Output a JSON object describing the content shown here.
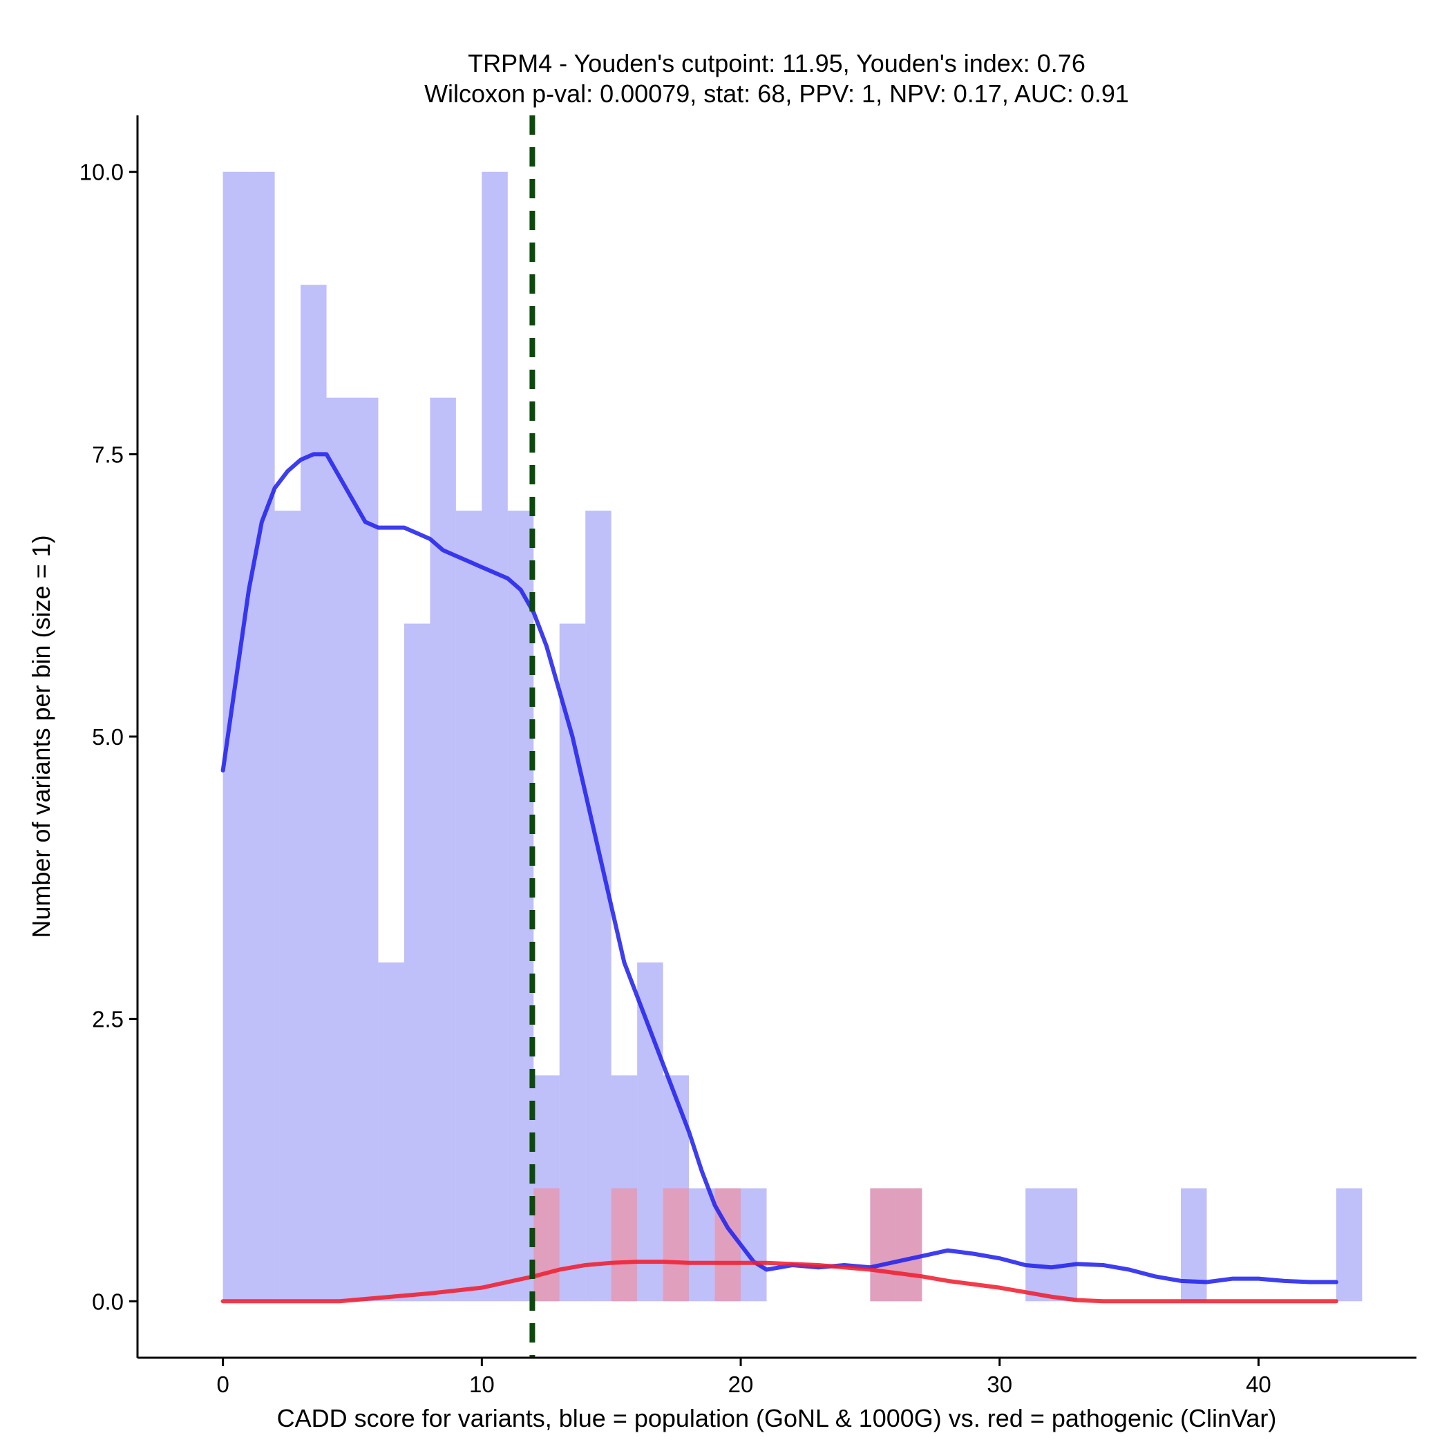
{
  "chart_data": {
    "type": "bar",
    "title": "TRPM4 - Youden's cutpoint: 11.95, Youden's index: 0.76",
    "subtitle": "Wilcoxon p-val: 0.00079, stat: 68, PPV: 1, NPV: 0.17, AUC: 0.91",
    "xlabel": "CADD score for variants, blue = population (GoNL & 1000G) vs. red = pathogenic (ClinVar)",
    "ylabel": "Number of variants per bin (size = 1)",
    "xlim": [
      -3.3,
      46.1
    ],
    "ylim": [
      -0.5,
      10.5
    ],
    "x_ticks": [
      0,
      10,
      20,
      30,
      40
    ],
    "x_tick_labels": [
      "0",
      "10",
      "20",
      "30",
      "40"
    ],
    "y_ticks": [
      0,
      2.5,
      5,
      7.5,
      10
    ],
    "y_tick_labels": [
      "0.0",
      "2.5",
      "5.0",
      "7.5",
      "10.0"
    ],
    "bin_width": 1,
    "cutpoint": 11.95,
    "series": [
      {
        "name": "population (GoNL & 1000G)",
        "color": "#8080f5",
        "bins": [
          {
            "x0": 0,
            "count": 10
          },
          {
            "x0": 1,
            "count": 10
          },
          {
            "x0": 2,
            "count": 7
          },
          {
            "x0": 3,
            "count": 9
          },
          {
            "x0": 4,
            "count": 8
          },
          {
            "x0": 5,
            "count": 8
          },
          {
            "x0": 6,
            "count": 3
          },
          {
            "x0": 7,
            "count": 6
          },
          {
            "x0": 8,
            "count": 8
          },
          {
            "x0": 9,
            "count": 7
          },
          {
            "x0": 10,
            "count": 10
          },
          {
            "x0": 11,
            "count": 7
          },
          {
            "x0": 12,
            "count": 2
          },
          {
            "x0": 13,
            "count": 6
          },
          {
            "x0": 14,
            "count": 7
          },
          {
            "x0": 15,
            "count": 2
          },
          {
            "x0": 16,
            "count": 3
          },
          {
            "x0": 17,
            "count": 2
          },
          {
            "x0": 18,
            "count": 1
          },
          {
            "x0": 19,
            "count": 1
          },
          {
            "x0": 20,
            "count": 1
          },
          {
            "x0": 25,
            "count": 1
          },
          {
            "x0": 26,
            "count": 1
          },
          {
            "x0": 31,
            "count": 1
          },
          {
            "x0": 32,
            "count": 1
          },
          {
            "x0": 37,
            "count": 1
          },
          {
            "x0": 43,
            "count": 1
          }
        ]
      },
      {
        "name": "pathogenic (ClinVar)",
        "color": "#ff8080",
        "bins": [
          {
            "x0": 12,
            "count": 1
          },
          {
            "x0": 15,
            "count": 1
          },
          {
            "x0": 17,
            "count": 1
          },
          {
            "x0": 19,
            "count": 1
          },
          {
            "x0": 25,
            "count": 1
          },
          {
            "x0": 26,
            "count": 1
          }
        ]
      }
    ],
    "density_lines": [
      {
        "name": "population density",
        "color": "#2323ee",
        "x": [
          0,
          0.5,
          1,
          1.5,
          2,
          2.5,
          3,
          3.5,
          4,
          4.5,
          5,
          5.5,
          6,
          6.5,
          7,
          7.5,
          8,
          8.5,
          9,
          9.5,
          10,
          10.5,
          11,
          11.5,
          12,
          12.5,
          13,
          13.5,
          14,
          14.5,
          15,
          15.5,
          16,
          16.5,
          17,
          17.5,
          18,
          18.5,
          19,
          19.5,
          20,
          20.5,
          21,
          21.5,
          22,
          23,
          24,
          25,
          26,
          27,
          28,
          29,
          30,
          31,
          32,
          33,
          34,
          35,
          36,
          37,
          38,
          39,
          40,
          41,
          42,
          43
        ],
        "y": [
          4.7,
          5.5,
          6.3,
          6.9,
          7.2,
          7.35,
          7.45,
          7.5,
          7.5,
          7.3,
          7.1,
          6.9,
          6.85,
          6.85,
          6.85,
          6.8,
          6.75,
          6.65,
          6.6,
          6.55,
          6.5,
          6.45,
          6.4,
          6.3,
          6.1,
          5.8,
          5.4,
          5.0,
          4.5,
          4.0,
          3.5,
          3.0,
          2.7,
          2.4,
          2.1,
          1.8,
          1.5,
          1.15,
          0.85,
          0.65,
          0.5,
          0.35,
          0.28,
          0.3,
          0.32,
          0.3,
          0.32,
          0.3,
          0.35,
          0.4,
          0.45,
          0.42,
          0.38,
          0.32,
          0.3,
          0.33,
          0.32,
          0.28,
          0.22,
          0.18,
          0.17,
          0.2,
          0.2,
          0.18,
          0.17,
          0.17
        ]
      },
      {
        "name": "pathogenic density",
        "color": "#f02030",
        "x": [
          0,
          2,
          4.5,
          6,
          8,
          10,
          11,
          12,
          13,
          14,
          15,
          16,
          17,
          18,
          19,
          20,
          21,
          22,
          23,
          24,
          25,
          26,
          27,
          28,
          29,
          30,
          31,
          32,
          33,
          34,
          35,
          36,
          37,
          38,
          39,
          40,
          41,
          42,
          43
        ],
        "y": [
          0,
          0,
          0,
          0.03,
          0.07,
          0.12,
          0.17,
          0.22,
          0.28,
          0.32,
          0.34,
          0.35,
          0.35,
          0.34,
          0.34,
          0.34,
          0.34,
          0.33,
          0.32,
          0.3,
          0.28,
          0.25,
          0.22,
          0.18,
          0.15,
          0.12,
          0.08,
          0.04,
          0.01,
          0,
          0,
          0,
          0,
          0,
          0,
          0,
          0,
          0,
          0
        ]
      }
    ]
  }
}
